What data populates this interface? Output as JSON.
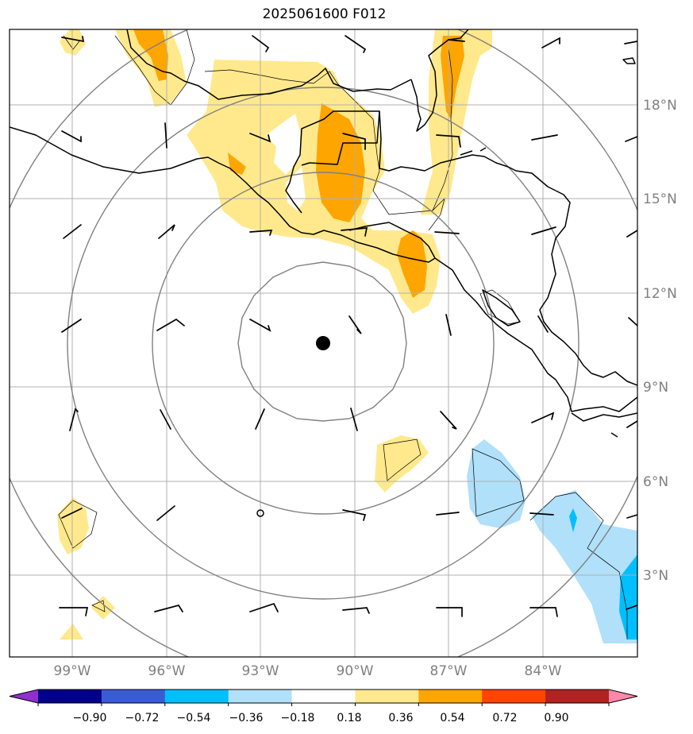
{
  "title": "2025061600 F012",
  "map": {
    "lon_range": [
      -101.0,
      -81.0
    ],
    "lat_range": [
      0.5,
      20.5
    ],
    "center": {
      "lon": -91.0,
      "lat": 10.4
    },
    "storm_marker": "filled-circle",
    "range_rings_deg": [
      3,
      6,
      9,
      12
    ],
    "lat_labels": [
      "3°N",
      "6°N",
      "9°N",
      "12°N",
      "15°N",
      "18°N"
    ],
    "lat_values": [
      3,
      6,
      9,
      12,
      15,
      18
    ],
    "lon_labels": [
      "99°W",
      "96°W",
      "93°W",
      "90°W",
      "87°W",
      "84°W"
    ],
    "lon_values": [
      -99,
      -96,
      -93,
      -90,
      -87,
      -84
    ]
  },
  "colorbar": {
    "colors": [
      "#8f2fcd",
      "#00008b",
      "#3a5bd6",
      "#00bfff",
      "#b0e0fa",
      "#ffffff",
      "#ffe98c",
      "#ffa500",
      "#ff4500",
      "#b22222",
      "#ff88aa"
    ],
    "tick_labels": [
      "−0.90",
      "−0.72",
      "−0.54",
      "−0.36",
      "−0.18",
      "0.18",
      "0.36",
      "0.54",
      "0.72",
      "0.90"
    ]
  },
  "colors": {
    "grid": "#b0b0b0",
    "range_ring": "#808080",
    "coast": "#000000",
    "light_yellow": "#ffe98c",
    "orange": "#ffa500",
    "light_blue": "#b0e0fa",
    "deep_sky_blue": "#00bfff"
  }
}
